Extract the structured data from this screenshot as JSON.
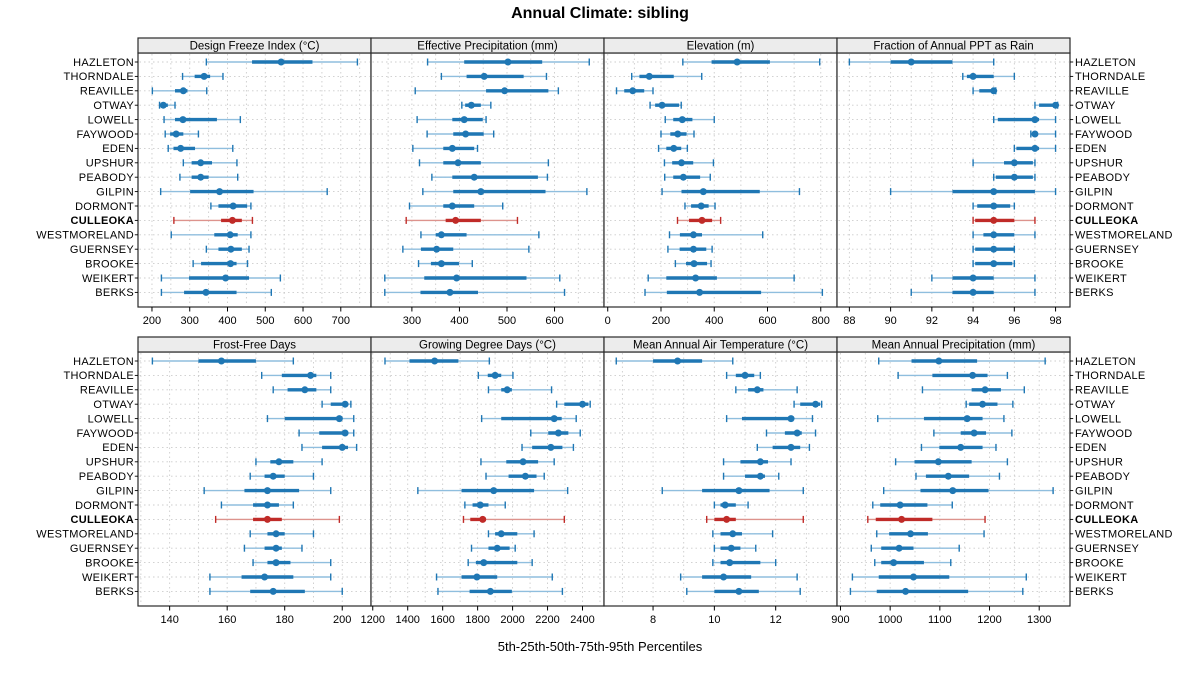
{
  "title": "Annual Climate: sibling",
  "caption": "5th-25th-50th-75th-95th Percentiles",
  "highlight_station": "CULLEOKA",
  "stations": [
    "HAZLETON",
    "THORNDALE",
    "REAVILLE",
    "OTWAY",
    "LOWELL",
    "FAYWOOD",
    "EDEN",
    "UPSHUR",
    "PEABODY",
    "GILPIN",
    "DORMONT",
    "CULLEOKA",
    "WESTMORELAND",
    "GUERNSEY",
    "BROOKE",
    "WEIKERT",
    "BERKS"
  ],
  "colors": {
    "blue": "#1f77b4",
    "blue_light": "#8fbede",
    "red": "#c02b28",
    "red_light": "#dd938d",
    "strip_bg": "#ececec",
    "grid": "#cccccc",
    "border": "#2a2a2a",
    "tick": "#000000"
  },
  "chart_data": {
    "type": "percentile-dotplot-trellis",
    "percentile_order": [
      "p5",
      "p25",
      "p50",
      "p75",
      "p95"
    ],
    "legend_position": "none",
    "grid": "dashed",
    "panels": [
      {
        "title": "Design Freeze Index (°C)",
        "row": 0,
        "col": 0,
        "xlim": [
          163,
          780
        ],
        "ticks": [
          200,
          300,
          400,
          500,
          600,
          700
        ],
        "grid": [
          200,
          250,
          300,
          350,
          400,
          450,
          500,
          550,
          600,
          650,
          700,
          750
        ],
        "values": [
          [
            344,
            465,
            542,
            625,
            744
          ],
          [
            281,
            313,
            338,
            354,
            388
          ],
          [
            201,
            261,
            283,
            294,
            345
          ],
          [
            220,
            224,
            230,
            242,
            261
          ],
          [
            232,
            261,
            282,
            372,
            434
          ],
          [
            235,
            248,
            264,
            283,
            323
          ],
          [
            243,
            257,
            276,
            314,
            414
          ],
          [
            283,
            305,
            329,
            359,
            425
          ],
          [
            274,
            305,
            329,
            350,
            427
          ],
          [
            223,
            301,
            379,
            469,
            664
          ],
          [
            356,
            376,
            415,
            452,
            462
          ],
          [
            258,
            383,
            413,
            438,
            466
          ],
          [
            251,
            365,
            407,
            427,
            462
          ],
          [
            344,
            376,
            409,
            438,
            457
          ],
          [
            309,
            330,
            408,
            424,
            453
          ],
          [
            225,
            298,
            395,
            457,
            540
          ],
          [
            225,
            285,
            343,
            424,
            516
          ]
        ]
      },
      {
        "title": "Effective Precipitation (mm)",
        "row": 0,
        "col": 1,
        "xlim": [
          214,
          704
        ],
        "ticks": [
          300,
          400,
          500,
          600
        ],
        "grid": [
          250,
          300,
          350,
          400,
          450,
          500,
          550,
          600,
          650,
          700
        ],
        "values": [
          [
            333,
            410,
            502,
            574,
            673
          ],
          [
            362,
            415,
            452,
            535,
            583
          ],
          [
            307,
            456,
            495,
            587,
            608
          ],
          [
            405,
            412,
            425,
            445,
            466
          ],
          [
            311,
            385,
            410,
            449,
            456
          ],
          [
            332,
            387,
            413,
            451,
            472
          ],
          [
            302,
            366,
            385,
            431,
            438
          ],
          [
            316,
            366,
            397,
            445,
            587
          ],
          [
            342,
            385,
            431,
            565,
            585
          ],
          [
            323,
            387,
            445,
            581,
            668
          ],
          [
            295,
            366,
            385,
            431,
            491
          ],
          [
            288,
            371,
            392,
            445,
            522
          ],
          [
            319,
            350,
            362,
            415,
            567
          ],
          [
            281,
            319,
            352,
            387,
            546
          ],
          [
            314,
            340,
            362,
            399,
            427
          ],
          [
            243,
            326,
            394,
            541,
            611
          ],
          [
            243,
            318,
            380,
            439,
            621
          ]
        ]
      },
      {
        "title": "Elevation (m)",
        "row": 0,
        "col": 2,
        "xlim": [
          -14,
          861
        ],
        "ticks": [
          0,
          200,
          400,
          600,
          800
        ],
        "grid": [
          0,
          100,
          200,
          300,
          400,
          500,
          600,
          700,
          800
        ],
        "values": [
          [
            282,
            390,
            486,
            609,
            796
          ],
          [
            90,
            119,
            156,
            248,
            353
          ],
          [
            33,
            62,
            94,
            137,
            170
          ],
          [
            159,
            178,
            204,
            268,
            276
          ],
          [
            216,
            246,
            280,
            318,
            400
          ],
          [
            200,
            235,
            263,
            296,
            324
          ],
          [
            191,
            220,
            248,
            276,
            299
          ],
          [
            213,
            242,
            277,
            321,
            397
          ],
          [
            214,
            246,
            284,
            347,
            385
          ],
          [
            204,
            277,
            359,
            571,
            720
          ],
          [
            290,
            313,
            351,
            379,
            403
          ],
          [
            262,
            305,
            354,
            392,
            424
          ],
          [
            232,
            271,
            322,
            354,
            582
          ],
          [
            226,
            270,
            322,
            370,
            392
          ],
          [
            254,
            294,
            324,
            373,
            388
          ],
          [
            152,
            220,
            330,
            410,
            700
          ],
          [
            140,
            222,
            345,
            576,
            806
          ]
        ]
      },
      {
        "title": "Fraction of Annual PPT as Rain",
        "row": 0,
        "col": 3,
        "xlim": [
          87.4,
          98.7
        ],
        "ticks": [
          88,
          90,
          92,
          94,
          96,
          98
        ],
        "grid": [
          88,
          89,
          90,
          91,
          92,
          93,
          94,
          95,
          96,
          97,
          98
        ],
        "values": [
          [
            88,
            90,
            91,
            93,
            95
          ],
          [
            93.5,
            93.7,
            94,
            95,
            96
          ],
          [
            94,
            94.3,
            95,
            95,
            95.1
          ],
          [
            97,
            97.2,
            98,
            98,
            98.1
          ],
          [
            95,
            95.2,
            97,
            97.2,
            98
          ],
          [
            96.8,
            96.9,
            97,
            97.1,
            98
          ],
          [
            96,
            96.1,
            97,
            97.2,
            98
          ],
          [
            94,
            95.5,
            96,
            96.9,
            97
          ],
          [
            95,
            95.1,
            96,
            96.9,
            97
          ],
          [
            90,
            93,
            95,
            97,
            98
          ],
          [
            94,
            94.2,
            95,
            95.8,
            96
          ],
          [
            94,
            94.1,
            95,
            96,
            97
          ],
          [
            94,
            94.5,
            95,
            96,
            97
          ],
          [
            94,
            94.1,
            95,
            96,
            96
          ],
          [
            94,
            94.1,
            95,
            95.9,
            96
          ],
          [
            92,
            93,
            94,
            95,
            97
          ],
          [
            91,
            93,
            94,
            95,
            97
          ]
        ]
      },
      {
        "title": "Frost-Free Days",
        "row": 1,
        "col": 0,
        "xlim": [
          129,
          210
        ],
        "ticks": [
          140,
          160,
          180,
          200
        ],
        "grid": [
          130,
          140,
          150,
          160,
          170,
          180,
          190,
          200
        ],
        "values": [
          [
            134,
            150,
            158,
            170,
            183
          ],
          [
            172,
            179,
            189,
            191,
            196
          ],
          [
            176,
            181,
            187,
            191,
            196
          ],
          [
            193,
            196,
            201,
            202,
            203
          ],
          [
            174,
            180,
            199,
            200,
            204
          ],
          [
            185,
            192,
            201,
            202,
            204
          ],
          [
            186,
            193,
            200,
            202,
            205
          ],
          [
            170,
            175,
            178,
            183,
            193
          ],
          [
            168,
            173,
            176,
            180,
            190
          ],
          [
            152,
            166,
            174,
            185,
            196
          ],
          [
            158,
            169,
            174,
            178,
            183
          ],
          [
            156,
            169,
            174,
            179,
            199
          ],
          [
            168,
            174,
            177,
            180,
            190
          ],
          [
            166,
            173,
            177,
            179,
            186
          ],
          [
            169,
            174,
            177,
            182,
            196
          ],
          [
            154,
            165,
            173,
            183,
            196
          ],
          [
            154,
            168,
            176,
            187,
            200
          ]
        ]
      },
      {
        "title": "Growing Degree Days (°C)",
        "row": 1,
        "col": 1,
        "xlim": [
          1190,
          2523
        ],
        "ticks": [
          1200,
          1400,
          1600,
          1800,
          2000,
          2200,
          2400
        ],
        "grid": [
          1200,
          1300,
          1400,
          1500,
          1600,
          1700,
          1800,
          1900,
          2000,
          2100,
          2200,
          2300,
          2400,
          2500
        ],
        "values": [
          [
            1270,
            1410,
            1554,
            1690,
            1867
          ],
          [
            1804,
            1858,
            1900,
            1935,
            2002
          ],
          [
            1862,
            1935,
            1969,
            1996,
            2223
          ],
          [
            2252,
            2296,
            2400,
            2434,
            2444
          ],
          [
            1823,
            1935,
            2238,
            2281,
            2364
          ],
          [
            2104,
            2204,
            2262,
            2319,
            2387
          ],
          [
            2054,
            2112,
            2219,
            2285,
            2348
          ],
          [
            1819,
            1964,
            2060,
            2146,
            2238
          ],
          [
            1848,
            1977,
            2073,
            2137,
            2181
          ],
          [
            1458,
            1708,
            1892,
            2123,
            2315
          ],
          [
            1727,
            1771,
            1815,
            1862,
            1958
          ],
          [
            1719,
            1758,
            1829,
            1848,
            2296
          ],
          [
            1862,
            1900,
            1935,
            2027,
            2123
          ],
          [
            1765,
            1862,
            1912,
            1983,
            2015
          ],
          [
            1746,
            1790,
            1835,
            2027,
            2112
          ],
          [
            1565,
            1708,
            1796,
            1912,
            2227
          ],
          [
            1573,
            1754,
            1873,
            1996,
            2285
          ]
        ]
      },
      {
        "title": "Mean Annual Air Temperature (°C)",
        "row": 1,
        "col": 2,
        "xlim": [
          6.4,
          14.0
        ],
        "ticks": [
          8,
          10,
          12
        ],
        "grid": [
          7,
          8,
          9,
          10,
          11,
          12,
          13
        ],
        "values": [
          [
            6.8,
            8.0,
            8.8,
            9.6,
            10.6
          ],
          [
            10.4,
            10.7,
            11.0,
            11.3,
            11.5
          ],
          [
            10.7,
            11.1,
            11.4,
            11.6,
            12.7
          ],
          [
            12.6,
            12.8,
            13.3,
            13.45,
            13.5
          ],
          [
            10.4,
            10.9,
            12.5,
            12.6,
            13.2
          ],
          [
            11.7,
            12.3,
            12.7,
            12.85,
            13.3
          ],
          [
            11.4,
            11.9,
            12.5,
            12.8,
            13.1
          ],
          [
            10.3,
            10.85,
            11.5,
            11.75,
            12.5
          ],
          [
            10.3,
            11.0,
            11.5,
            11.65,
            12.1
          ],
          [
            8.3,
            9.6,
            10.8,
            11.8,
            12.9
          ],
          [
            10.0,
            10.2,
            10.35,
            10.7,
            11.1
          ],
          [
            9.75,
            10.0,
            10.4,
            10.7,
            12.9
          ],
          [
            9.95,
            10.2,
            10.6,
            10.9,
            11.9
          ],
          [
            10.0,
            10.2,
            10.55,
            10.85,
            11.35
          ],
          [
            9.95,
            10.2,
            10.5,
            11.5,
            12.0
          ],
          [
            8.9,
            9.6,
            10.3,
            11.2,
            12.7
          ],
          [
            9.1,
            10.0,
            10.8,
            11.45,
            12.8
          ]
        ]
      },
      {
        "title": "Mean Annual Precipitation (mm)",
        "row": 1,
        "col": 3,
        "xlim": [
          893,
          1362
        ],
        "ticks": [
          900,
          1000,
          1100,
          1200,
          1300
        ],
        "grid": [
          900,
          950,
          1000,
          1050,
          1100,
          1150,
          1200,
          1250,
          1300,
          1350
        ],
        "values": [
          [
            977,
            1043,
            1098,
            1175,
            1312
          ],
          [
            1016,
            1085,
            1166,
            1196,
            1236
          ],
          [
            1065,
            1164,
            1191,
            1223,
            1270
          ],
          [
            1153,
            1159,
            1186,
            1216,
            1247
          ],
          [
            975,
            1068,
            1155,
            1186,
            1229
          ],
          [
            1088,
            1142,
            1169,
            1193,
            1245
          ],
          [
            1063,
            1099,
            1142,
            1186,
            1213
          ],
          [
            1011,
            1049,
            1097,
            1164,
            1236
          ],
          [
            1052,
            1072,
            1117,
            1159,
            1220
          ],
          [
            987,
            1061,
            1126,
            1198,
            1328
          ],
          [
            965,
            980,
            1020,
            1075,
            1125
          ],
          [
            955,
            971,
            1023,
            1085,
            1191
          ],
          [
            973,
            998,
            1041,
            1076,
            1189
          ],
          [
            962,
            982,
            1018,
            1047,
            1139
          ],
          [
            969,
            982,
            1007,
            1068,
            1122
          ],
          [
            924,
            977,
            1047,
            1119,
            1274
          ],
          [
            920,
            973,
            1031,
            1157,
            1267
          ]
        ]
      }
    ]
  }
}
